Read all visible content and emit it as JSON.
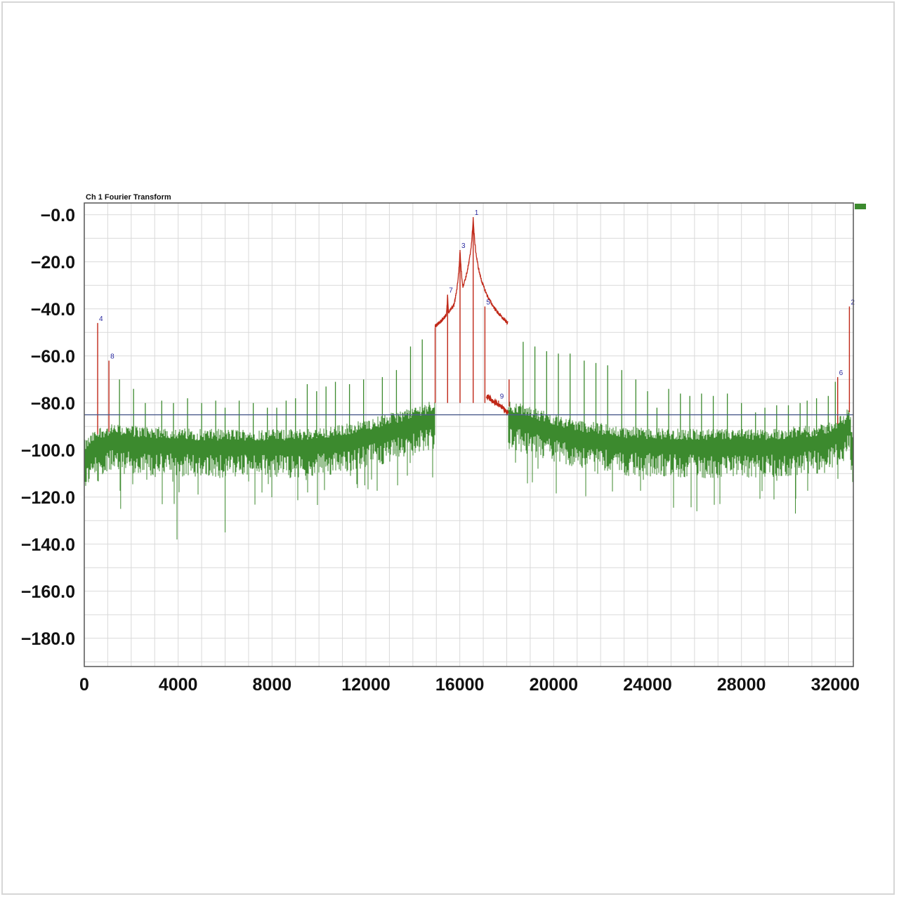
{
  "chart_data": {
    "type": "line",
    "title": "Ch 1 Fourier Transform",
    "xlabel": "",
    "ylabel": "",
    "xlim": [
      0,
      32768
    ],
    "ylim": [
      -192,
      5
    ],
    "grid": true,
    "x_ticks": [
      0,
      4000,
      8000,
      12000,
      16000,
      20000,
      24000,
      28000,
      32000
    ],
    "x_tick_labels": [
      "0",
      "4000",
      "8000",
      "12000",
      "16000",
      "20000",
      "24000",
      "28000",
      "32000"
    ],
    "y_ticks": [
      0,
      -20,
      -40,
      -60,
      -80,
      -100,
      -120,
      -140,
      -160,
      -180
    ],
    "y_tick_labels": [
      "−0.0",
      "−20.0",
      "−40.0",
      "−60.0",
      "−80.0",
      "−100.0",
      "−120.0",
      "−140.0",
      "−160.0",
      "−180.0"
    ],
    "threshold_line": {
      "y": -85,
      "color": "#4a5a8a"
    },
    "colors": {
      "spectrum": "#3c8a2e",
      "peaks": "#c02818",
      "markers": "#2a2aa0",
      "grid": "#d9d9d9"
    },
    "series": [
      {
        "color": "#3c8a2e",
        "noise_floor": [
          [
            0,
            -103
          ],
          [
            600,
            -97
          ],
          [
            1200,
            -96
          ],
          [
            3000,
            -97
          ],
          [
            5000,
            -98
          ],
          [
            7000,
            -98
          ],
          [
            9000,
            -98
          ],
          [
            10500,
            -97
          ],
          [
            12000,
            -94
          ],
          [
            13500,
            -90
          ],
          [
            14800,
            -86
          ],
          [
            15000,
            -85
          ],
          [
            18000,
            -85
          ],
          [
            18200,
            -86
          ],
          [
            19500,
            -90
          ],
          [
            21000,
            -94
          ],
          [
            23000,
            -97
          ],
          [
            26000,
            -98
          ],
          [
            29000,
            -98
          ],
          [
            31500,
            -96
          ],
          [
            32300,
            -92
          ],
          [
            32600,
            -88
          ],
          [
            32768,
            -103
          ]
        ],
        "spurs": [
          [
            1500,
            -70
          ],
          [
            2100,
            -74
          ],
          [
            2600,
            -80
          ],
          [
            3300,
            -79
          ],
          [
            3800,
            -80
          ],
          [
            4400,
            -78
          ],
          [
            5000,
            -80
          ],
          [
            5600,
            -79
          ],
          [
            6000,
            -82
          ],
          [
            6600,
            -79
          ],
          [
            7200,
            -80
          ],
          [
            7800,
            -82
          ],
          [
            8200,
            -82
          ],
          [
            8600,
            -79
          ],
          [
            9000,
            -78
          ],
          [
            9500,
            -72
          ],
          [
            9900,
            -75
          ],
          [
            10300,
            -73
          ],
          [
            10700,
            -71
          ],
          [
            11300,
            -72
          ],
          [
            11900,
            -70
          ],
          [
            12700,
            -69
          ],
          [
            13300,
            -66
          ],
          [
            13900,
            -56
          ],
          [
            14400,
            -53
          ],
          [
            18700,
            -54
          ],
          [
            19200,
            -56
          ],
          [
            19700,
            -58
          ],
          [
            20200,
            -59
          ],
          [
            20700,
            -59
          ],
          [
            21300,
            -62
          ],
          [
            21800,
            -63
          ],
          [
            22300,
            -64
          ],
          [
            22900,
            -66
          ],
          [
            23500,
            -70
          ],
          [
            24000,
            -75
          ],
          [
            24400,
            -82
          ],
          [
            24900,
            -74
          ],
          [
            25400,
            -76
          ],
          [
            25800,
            -77
          ],
          [
            26300,
            -76
          ],
          [
            26800,
            -77
          ],
          [
            27400,
            -76
          ],
          [
            28000,
            -80
          ],
          [
            28600,
            -84
          ],
          [
            29000,
            -82
          ],
          [
            29500,
            -81
          ],
          [
            30000,
            -81
          ],
          [
            30500,
            -80
          ],
          [
            30800,
            -79
          ],
          [
            31200,
            -78
          ],
          [
            31700,
            -77
          ],
          [
            32000,
            -71
          ]
        ]
      },
      {
        "color": "#c02818",
        "peaks": [
          {
            "x": 16570,
            "y": -1,
            "label": "1"
          },
          {
            "x": 16010,
            "y": -15,
            "label": "3"
          },
          {
            "x": 15480,
            "y": -34,
            "label": "7"
          },
          {
            "x": 17070,
            "y": -39,
            "label": "5"
          },
          {
            "x": 32600,
            "y": -39,
            "label": "2"
          },
          {
            "x": 570,
            "y": -46,
            "label": "4"
          },
          {
            "x": 1050,
            "y": -62,
            "label": "8"
          },
          {
            "x": 32100,
            "y": -69,
            "label": "6"
          },
          {
            "x": 17650,
            "y": -79,
            "label": "9"
          },
          {
            "x": 14950,
            "y": -48,
            "label": ""
          },
          {
            "x": 18100,
            "y": -70,
            "label": ""
          }
        ]
      }
    ]
  }
}
